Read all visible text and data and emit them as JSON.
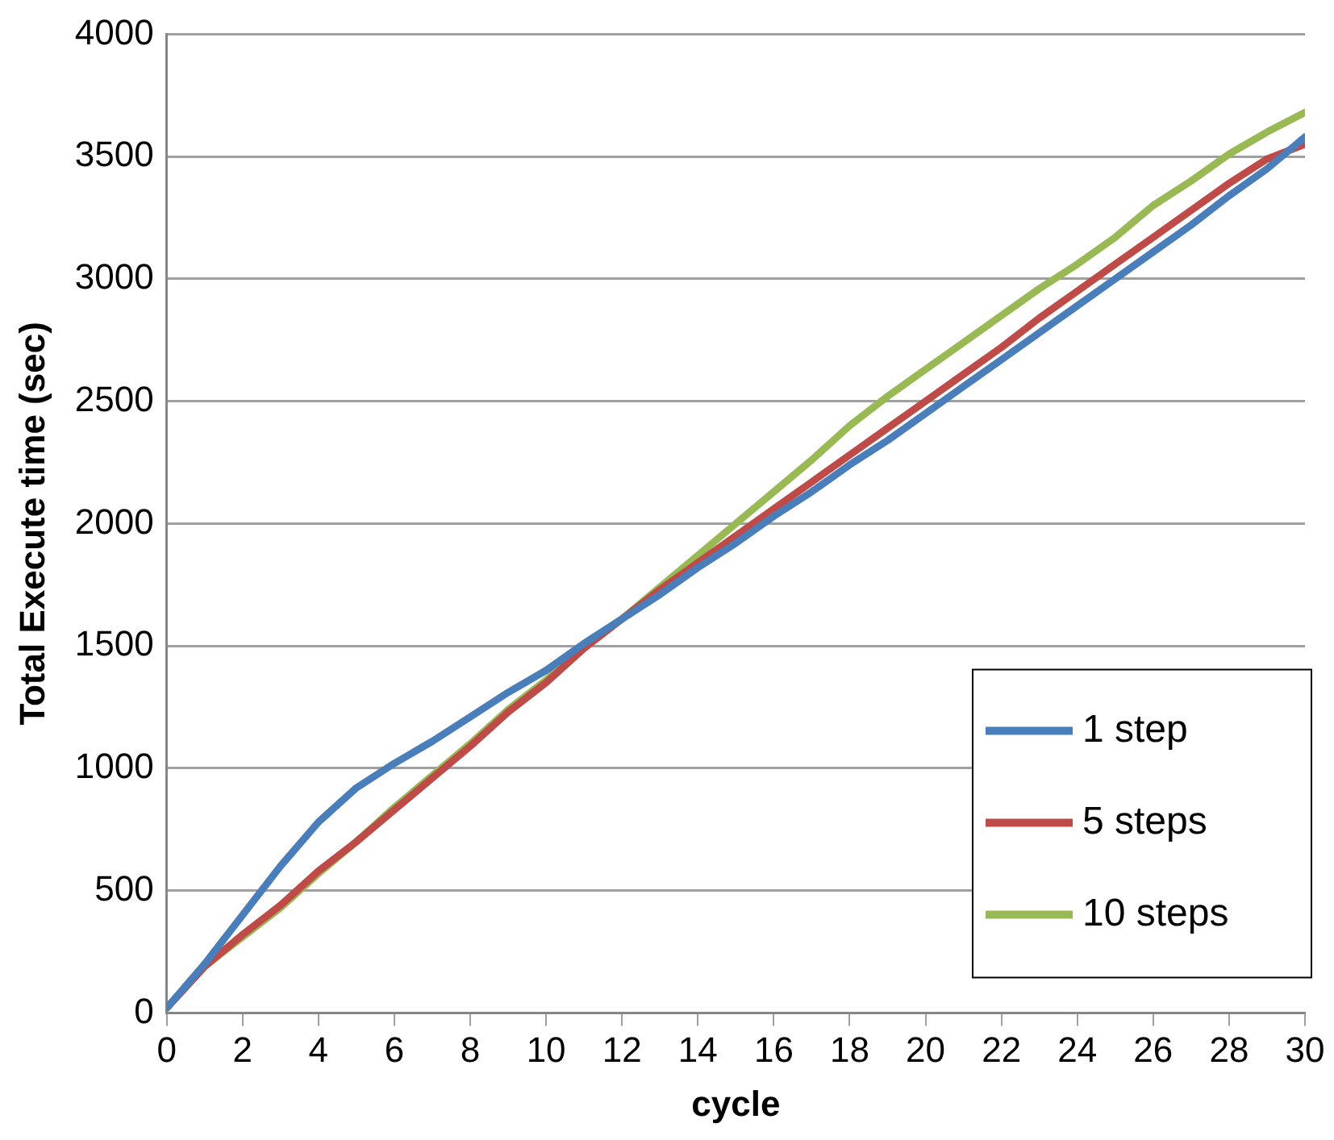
{
  "chart_data": {
    "type": "line",
    "xlabel": "cycle",
    "ylabel": "Total Execute time (sec)",
    "x": [
      0,
      1,
      2,
      3,
      4,
      5,
      6,
      7,
      8,
      9,
      10,
      11,
      12,
      13,
      14,
      15,
      16,
      17,
      18,
      19,
      20,
      21,
      22,
      23,
      24,
      25,
      26,
      27,
      28,
      29,
      30
    ],
    "xlim": [
      0,
      30
    ],
    "xticks": [
      0,
      2,
      4,
      6,
      8,
      10,
      12,
      14,
      16,
      18,
      20,
      22,
      24,
      26,
      28,
      30
    ],
    "ylim": [
      0,
      4000
    ],
    "yticks": [
      0,
      500,
      1000,
      1500,
      2000,
      2500,
      3000,
      3500,
      4000
    ],
    "grid": "y",
    "legend": "bottom right",
    "marker": "none",
    "line_style": "solid",
    "series": [
      {
        "name": "1 step",
        "color": "#4a7ebb",
        "values": [
          20,
          200,
          400,
          600,
          780,
          920,
          1020,
          1110,
          1210,
          1310,
          1400,
          1510,
          1610,
          1710,
          1820,
          1920,
          2030,
          2130,
          2240,
          2340,
          2450,
          2560,
          2670,
          2780,
          2890,
          3000,
          3110,
          3220,
          3340,
          3450,
          3580
        ]
      },
      {
        "name": "5 steps",
        "color": "#be4b48",
        "values": [
          20,
          190,
          320,
          440,
          580,
          700,
          830,
          960,
          1090,
          1230,
          1350,
          1490,
          1610,
          1730,
          1840,
          1950,
          2060,
          2170,
          2280,
          2390,
          2500,
          2610,
          2720,
          2840,
          2950,
          3060,
          3170,
          3280,
          3390,
          3490,
          3550
        ]
      },
      {
        "name": "10 steps",
        "color": "#98b954",
        "values": [
          20,
          190,
          310,
          430,
          570,
          700,
          840,
          970,
          1100,
          1240,
          1360,
          1500,
          1610,
          1740,
          1870,
          2000,
          2130,
          2260,
          2400,
          2520,
          2630,
          2740,
          2850,
          2960,
          3060,
          3170,
          3300,
          3400,
          3510,
          3600,
          3680
        ]
      }
    ]
  }
}
